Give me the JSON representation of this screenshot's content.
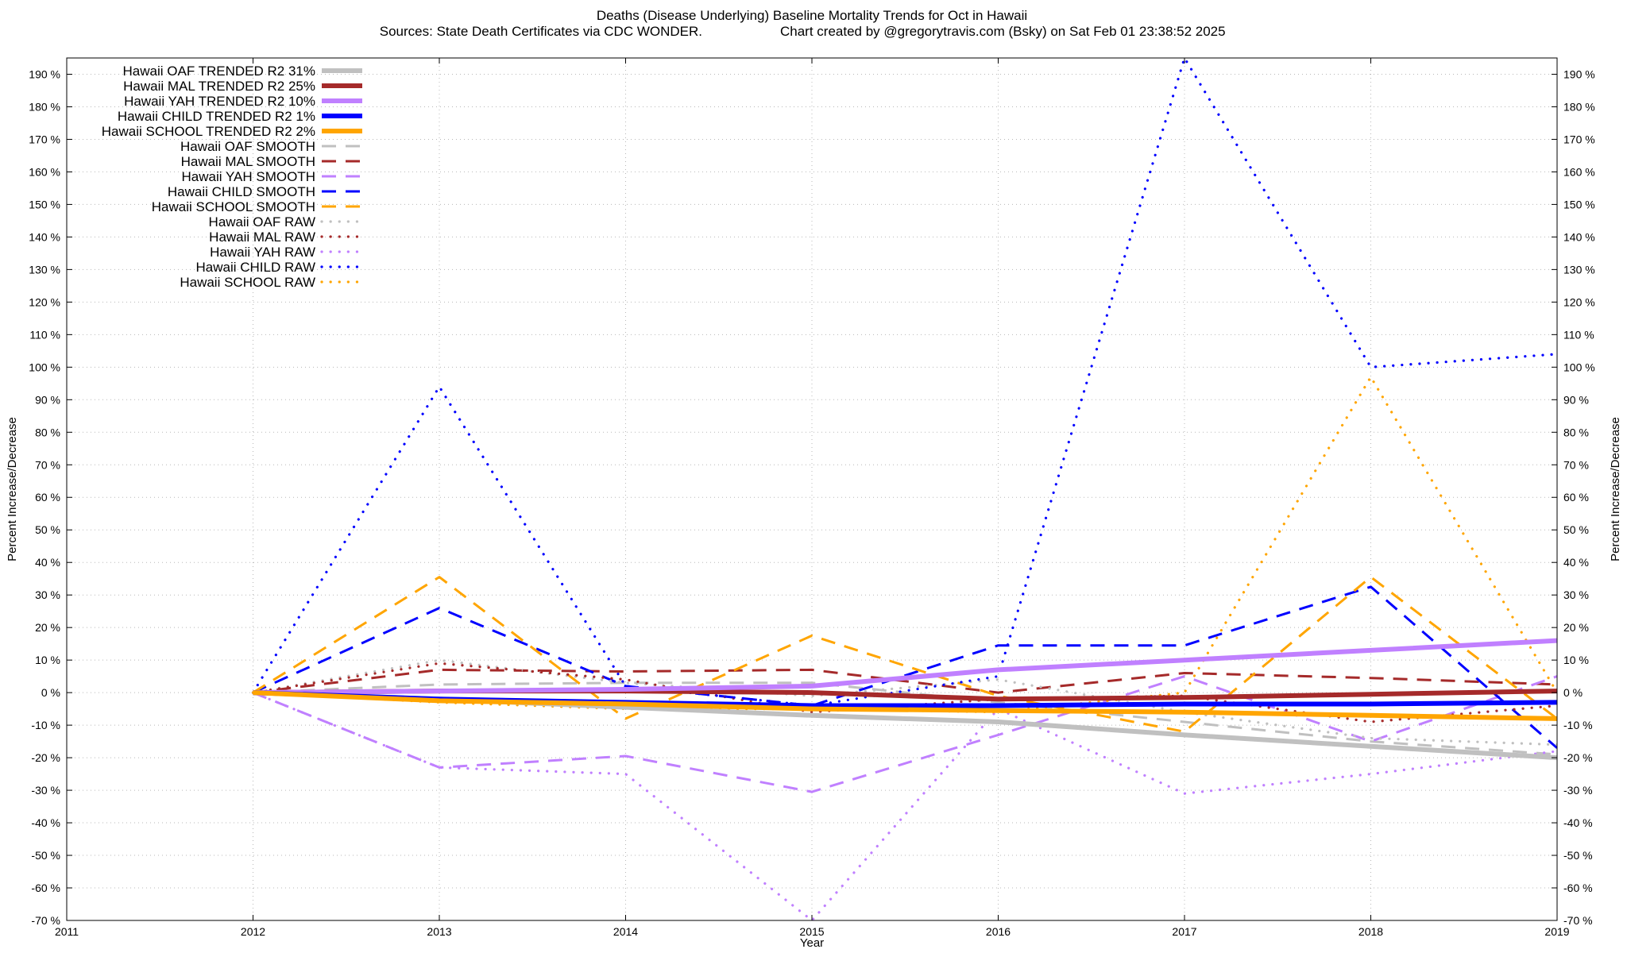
{
  "chart_data": {
    "type": "line",
    "title": "Deaths (Disease Underlying)  Baseline Mortality Trends for Oct in Hawaii",
    "subtitle_left": "Sources: State Death Certificates via CDC WONDER.",
    "subtitle_right": "Chart created by @gregorytravis.com (Bsky) on Sat Feb 01 23:38:52 2025",
    "xlabel": "Year",
    "ylabel_left": "Percent Increase/Decrease",
    "ylabel_right": "Percent Increase/Decrease",
    "xlim": [
      2011,
      2019
    ],
    "ylim": [
      -70,
      195
    ],
    "x_ticks": [
      "2011",
      "2012",
      "2013",
      "2014",
      "2015",
      "2016",
      "2017",
      "2018",
      "2019"
    ],
    "y_ticks": [
      "-70 %",
      "-60 %",
      "-50 %",
      "-40 %",
      "-30 %",
      "-20 %",
      "-10 %",
      "0 %",
      "10 %",
      "20 %",
      "30 %",
      "40 %",
      "50 %",
      "60 %",
      "70 %",
      "80 %",
      "90 %",
      "100 %",
      "110 %",
      "120 %",
      "130 %",
      "140 %",
      "150 %",
      "160 %",
      "170 %",
      "180 %",
      "190 %"
    ],
    "grid": true,
    "legend_position": "top-left",
    "series": [
      {
        "name": "Hawaii OAF TRENDED R2  31%",
        "color": "#c0c0c0",
        "style": "solid",
        "width": "thick",
        "x": [
          2012,
          2013,
          2014,
          2015,
          2016,
          2017,
          2018,
          2019
        ],
        "y": [
          0,
          -2,
          -4.5,
          -7,
          -9,
          -13,
          -16.5,
          -20
        ]
      },
      {
        "name": "Hawaii MAL TRENDED R2  25%",
        "color": "#a52a2a",
        "style": "solid",
        "width": "thick",
        "x": [
          2012,
          2013,
          2014,
          2015,
          2016,
          2017,
          2018,
          2019
        ],
        "y": [
          0,
          0.5,
          0.5,
          0,
          -2,
          -1.5,
          -0.5,
          0.5
        ]
      },
      {
        "name": "Hawaii YAH TRENDED R2  10%",
        "color": "#c080ff",
        "style": "solid",
        "width": "thick",
        "x": [
          2012,
          2013,
          2014,
          2015,
          2016,
          2017,
          2018,
          2019
        ],
        "y": [
          0,
          0.5,
          1,
          2,
          7,
          10,
          13,
          16
        ]
      },
      {
        "name": "Hawaii CHILD TRENDED R2  1%",
        "color": "#0000ff",
        "style": "solid",
        "width": "thick",
        "x": [
          2012,
          2013,
          2014,
          2015,
          2016,
          2017,
          2018,
          2019
        ],
        "y": [
          0,
          -2,
          -3,
          -4,
          -4,
          -3.5,
          -3.5,
          -3
        ]
      },
      {
        "name": "Hawaii SCHOOL TRENDED R2  2%",
        "color": "#ffa500",
        "style": "solid",
        "width": "thick",
        "x": [
          2012,
          2013,
          2014,
          2015,
          2016,
          2017,
          2018,
          2019
        ],
        "y": [
          0,
          -2.5,
          -3.5,
          -5,
          -5.5,
          -6,
          -7,
          -8
        ]
      },
      {
        "name": "Hawaii OAF SMOOTH",
        "color": "#c0c0c0",
        "style": "dashed",
        "width": "normal",
        "x": [
          2012,
          2013,
          2014,
          2015,
          2016,
          2017,
          2018,
          2019
        ],
        "y": [
          0,
          2.5,
          3,
          3,
          -3,
          -9,
          -15,
          -19
        ]
      },
      {
        "name": "Hawaii MAL SMOOTH",
        "color": "#a52a2a",
        "style": "dashed",
        "width": "normal",
        "x": [
          2012,
          2013,
          2014,
          2015,
          2016,
          2017,
          2018,
          2019
        ],
        "y": [
          0,
          7,
          6.5,
          7,
          0,
          6,
          4.5,
          2.5
        ]
      },
      {
        "name": "Hawaii YAH SMOOTH",
        "color": "#c080ff",
        "style": "dashed",
        "width": "normal",
        "x": [
          2012,
          2013,
          2014,
          2015,
          2016,
          2017,
          2018,
          2019
        ],
        "y": [
          0,
          -23,
          -19.5,
          -30.5,
          -13,
          5,
          -15,
          5
        ]
      },
      {
        "name": "Hawaii CHILD SMOOTH",
        "color": "#0000ff",
        "style": "dashed",
        "width": "normal",
        "x": [
          2012,
          2013,
          2014,
          2015,
          2016,
          2017,
          2018,
          2019
        ],
        "y": [
          0,
          26,
          2,
          -4,
          14.5,
          14.5,
          32.5,
          -17
        ]
      },
      {
        "name": "Hawaii SCHOOL SMOOTH",
        "color": "#ffa500",
        "style": "dashed",
        "width": "normal",
        "x": [
          2012,
          2013,
          2014,
          2015,
          2016,
          2017,
          2018,
          2019
        ],
        "y": [
          0,
          35.5,
          -8,
          17.5,
          -1,
          -12,
          35.5,
          -8
        ]
      },
      {
        "name": "Hawaii OAF RAW",
        "color": "#c0c0c0",
        "style": "dotted",
        "width": "normal",
        "x": [
          2012,
          2013,
          2014,
          2015,
          2016,
          2017,
          2018,
          2019
        ],
        "y": [
          0,
          10,
          3,
          -1,
          4,
          -6,
          -14,
          -16
        ]
      },
      {
        "name": "Hawaii MAL RAW",
        "color": "#a52a2a",
        "style": "dotted",
        "width": "normal",
        "x": [
          2012,
          2013,
          2014,
          2015,
          2016,
          2017,
          2018,
          2019
        ],
        "y": [
          0,
          9,
          4,
          -6,
          -2,
          -1,
          -9,
          -4
        ]
      },
      {
        "name": "Hawaii YAH RAW",
        "color": "#c080ff",
        "style": "dotted",
        "width": "normal",
        "x": [
          2012,
          2013,
          2014,
          2015,
          2016,
          2017,
          2018,
          2019
        ],
        "y": [
          0,
          -23,
          -25,
          -70,
          -5,
          -31,
          -25,
          -18
        ]
      },
      {
        "name": "Hawaii CHILD RAW",
        "color": "#0000ff",
        "style": "dotted",
        "width": "normal",
        "x": [
          2012,
          2013,
          2014,
          2015,
          2016,
          2017,
          2018,
          2019
        ],
        "y": [
          0,
          94,
          2,
          -4,
          5,
          195,
          100,
          104
        ]
      },
      {
        "name": "Hawaii SCHOOL RAW",
        "color": "#ffa500",
        "style": "dotted",
        "width": "normal",
        "x": [
          2012,
          2013,
          2014,
          2015,
          2016,
          2017,
          2018,
          2019
        ],
        "y": [
          0,
          -3,
          -5,
          -5,
          -6,
          0,
          97,
          0
        ]
      }
    ]
  }
}
